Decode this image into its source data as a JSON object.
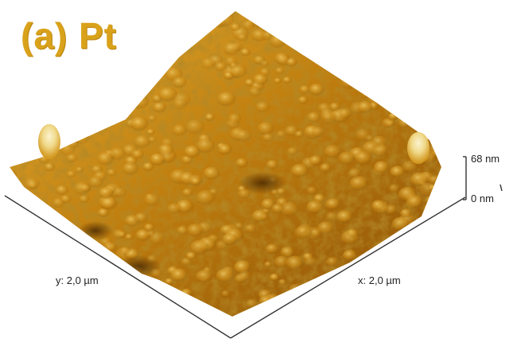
{
  "panel": {
    "label": "(a) Pt"
  },
  "axes": {
    "x_label": "x: 2,0 µm",
    "y_label": "y: 2,0 µm",
    "z_max_label": "68 nm",
    "z_min_label": "0 nm"
  },
  "colors": {
    "surface_dark": "#5a3403",
    "surface_mid": "#b8780c",
    "surface_light": "#e3b23a",
    "peak_highlight": "#f6e6a8",
    "label_gold": "#d9a21a",
    "axis_line": "#333333"
  }
}
